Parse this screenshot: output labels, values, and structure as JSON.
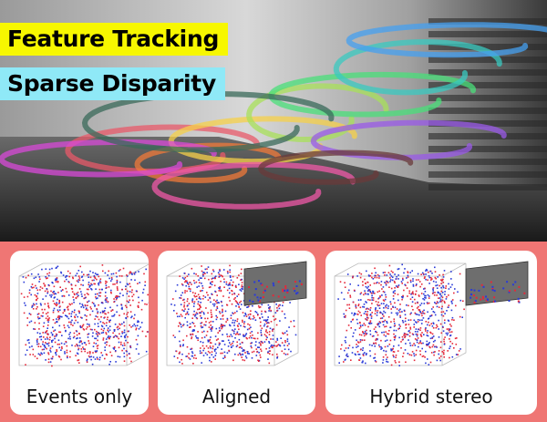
{
  "labels": {
    "feature_tracking": "Feature Tracking",
    "sparse_disparity": "Sparse Disparity"
  },
  "panels": [
    {
      "caption": "Events only",
      "has_inset": false
    },
    {
      "caption": "Aligned",
      "has_inset": true
    },
    {
      "caption": "Hybrid stereo",
      "has_inset": true
    }
  ],
  "colors": {
    "panel_background": "#ef7674",
    "feature_tracking_badge": "#f7f700",
    "sparse_disparity_badge": "#8fe9f7",
    "event_positive": "#e5283a",
    "event_negative": "#2a3ad8",
    "track_palette": [
      "#e85a6a",
      "#f07a3a",
      "#f5d04a",
      "#a8e05a",
      "#4adf7a",
      "#3ac9c0",
      "#46a0f0",
      "#9a5ae8",
      "#d84ad8",
      "#f05aa8",
      "#6a3a3a",
      "#3a6a5a"
    ]
  }
}
